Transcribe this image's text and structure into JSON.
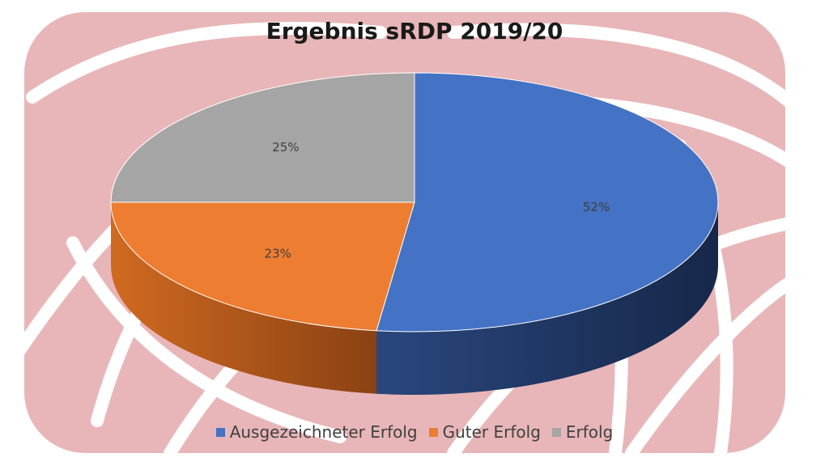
{
  "chart_data": {
    "type": "pie",
    "title": "Ergebnis sRDP 2019/20",
    "categories": [
      "Ausgezeichneter Erfolg",
      "Guter Erfolg",
      "Erfolg"
    ],
    "values": [
      52,
      23,
      25
    ],
    "labels": [
      "52%",
      "23%",
      "25%"
    ],
    "colors": [
      "#4472C4",
      "#ED7D31",
      "#A5A5A5"
    ],
    "legend_position": "bottom",
    "style": "3d"
  }
}
